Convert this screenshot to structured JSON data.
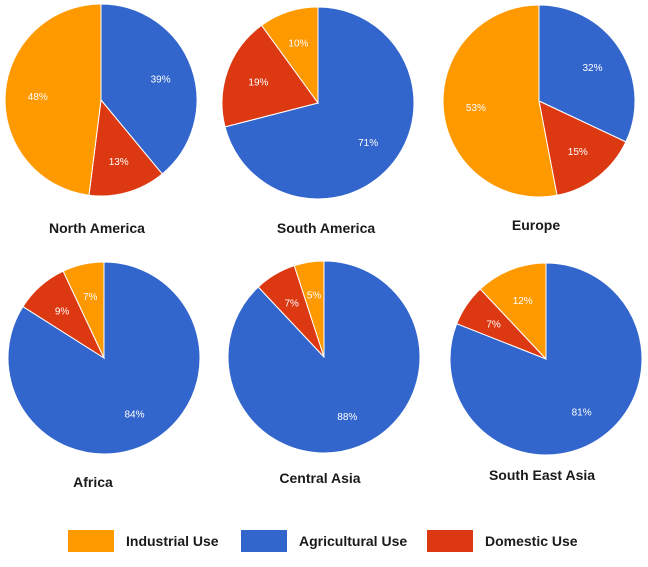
{
  "colors": {
    "industrial": "#ff9900",
    "agricultural": "#3366cc",
    "domestic": "#dc3912"
  },
  "legend": {
    "items": [
      {
        "label": "Industrial Use",
        "color": "#ff9900"
      },
      {
        "label": "Agricultural Use",
        "color": "#3366cc"
      },
      {
        "label": "Domestic Use",
        "color": "#dc3912"
      }
    ]
  },
  "chart_data": [
    {
      "type": "pie",
      "title": "North America",
      "slices": [
        {
          "category": "Agricultural Use",
          "value": 39,
          "label": "39%"
        },
        {
          "category": "Domestic Use",
          "value": 13,
          "label": "13%"
        },
        {
          "category": "Industrial Use",
          "value": 48,
          "label": "48%"
        }
      ]
    },
    {
      "type": "pie",
      "title": "South America",
      "slices": [
        {
          "category": "Agricultural Use",
          "value": 71,
          "label": "71%"
        },
        {
          "category": "Domestic Use",
          "value": 19,
          "label": "19%"
        },
        {
          "category": "Industrial Use",
          "value": 10,
          "label": "10%"
        }
      ]
    },
    {
      "type": "pie",
      "title": "Europe",
      "slices": [
        {
          "category": "Agricultural Use",
          "value": 32,
          "label": "32%"
        },
        {
          "category": "Domestic Use",
          "value": 15,
          "label": "15%"
        },
        {
          "category": "Industrial Use",
          "value": 53,
          "label": "53%"
        }
      ]
    },
    {
      "type": "pie",
      "title": "Africa",
      "slices": [
        {
          "category": "Agricultural Use",
          "value": 84,
          "label": "84%"
        },
        {
          "category": "Domestic Use",
          "value": 9,
          "label": "9%"
        },
        {
          "category": "Industrial Use",
          "value": 7,
          "label": "7%"
        }
      ]
    },
    {
      "type": "pie",
      "title": "Central Asia",
      "slices": [
        {
          "category": "Agricultural Use",
          "value": 88,
          "label": "88%"
        },
        {
          "category": "Domestic Use",
          "value": 7,
          "label": "7%"
        },
        {
          "category": "Industrial Use",
          "value": 5,
          "label": "5%"
        }
      ]
    },
    {
      "type": "pie",
      "title": "South East Asia",
      "slices": [
        {
          "category": "Agricultural Use",
          "value": 81,
          "label": "81%"
        },
        {
          "category": "Domestic Use",
          "value": 7,
          "label": "7%"
        },
        {
          "category": "Industrial Use",
          "value": 12,
          "label": "12%"
        }
      ]
    }
  ]
}
